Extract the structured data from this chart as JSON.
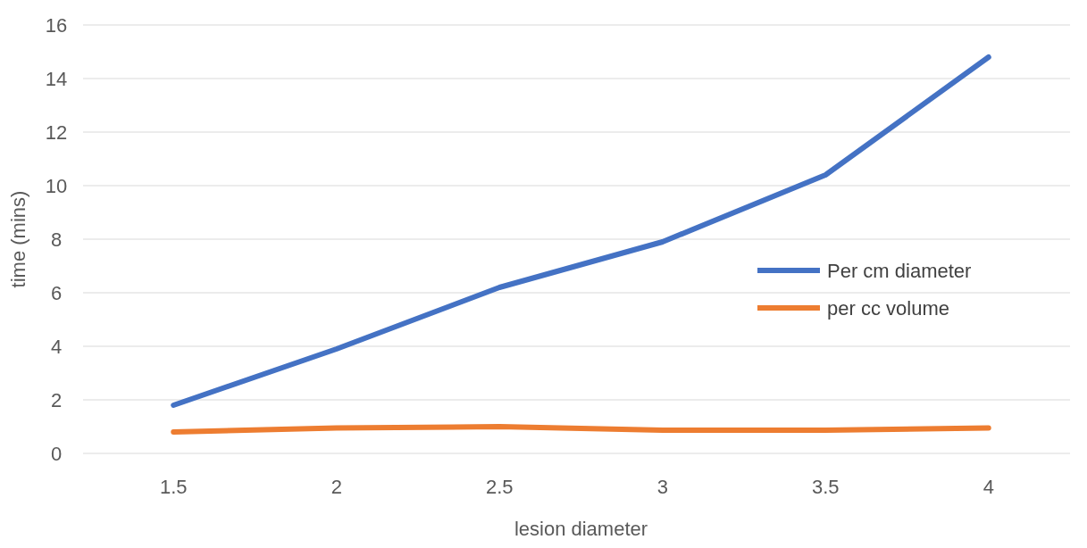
{
  "chart_data": {
    "type": "line",
    "xlabel": "lesion diameter",
    "ylabel": "time (mins)",
    "categories": [
      "1.5",
      "2",
      "2.5",
      "3",
      "3.5",
      "4"
    ],
    "series": [
      {
        "name": "Per cm diameter",
        "color": "#4472c4",
        "values": [
          1.8,
          3.9,
          6.2,
          7.9,
          10.4,
          14.8
        ]
      },
      {
        "name": "per cc volume",
        "color": "#ed7d31",
        "values": [
          0.8,
          0.95,
          1.0,
          0.87,
          0.87,
          0.95
        ]
      }
    ],
    "ylim": [
      0,
      16
    ],
    "yticks": [
      0,
      2,
      4,
      6,
      8,
      10,
      12,
      14,
      16
    ],
    "grid": "y",
    "legend": "right",
    "marker": "none",
    "line_style": "solid"
  }
}
